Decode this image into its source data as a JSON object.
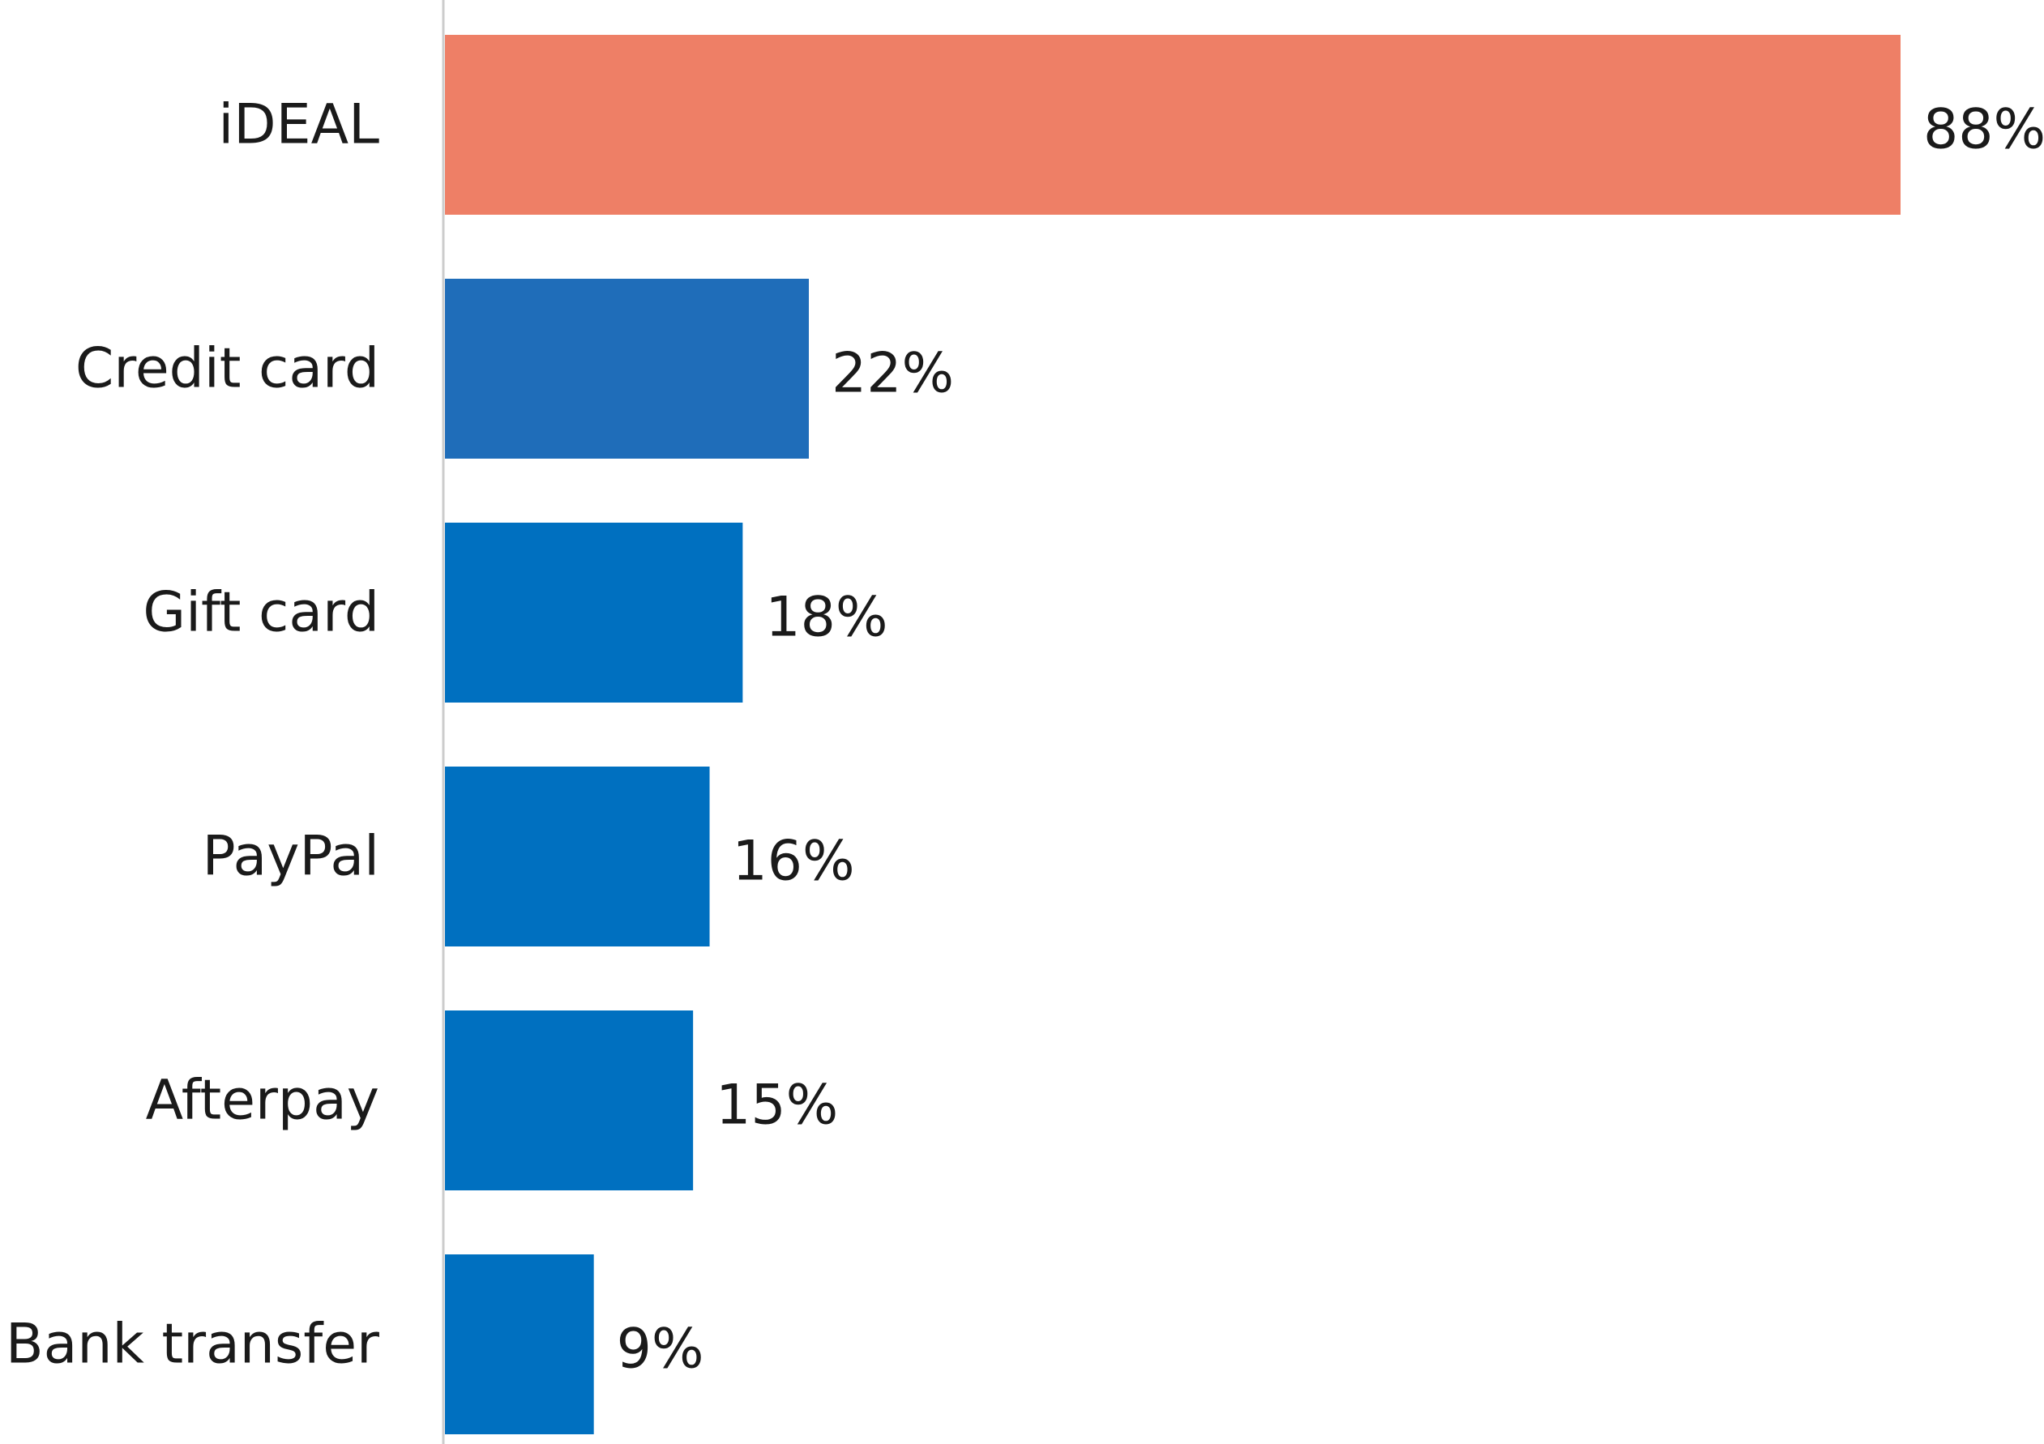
{
  "chart_data": {
    "type": "bar",
    "orientation": "horizontal",
    "categories": [
      "iDEAL",
      "Credit card",
      "Gift card",
      "PayPal",
      "Afterpay",
      "Bank transfer"
    ],
    "values": [
      88,
      22,
      18,
      16,
      15,
      9
    ],
    "value_labels": [
      "88%",
      "22%",
      "18%",
      "16%",
      "15%",
      "9%"
    ],
    "unit": "%",
    "xlim": [
      0,
      88
    ],
    "grid": false,
    "legend": "none",
    "colors": [
      "#EE7F66",
      "#1F6DB9",
      "#0070C0",
      "#0070C0",
      "#0070C0",
      "#0070C0"
    ],
    "axis_color": "#CCCCCC"
  }
}
